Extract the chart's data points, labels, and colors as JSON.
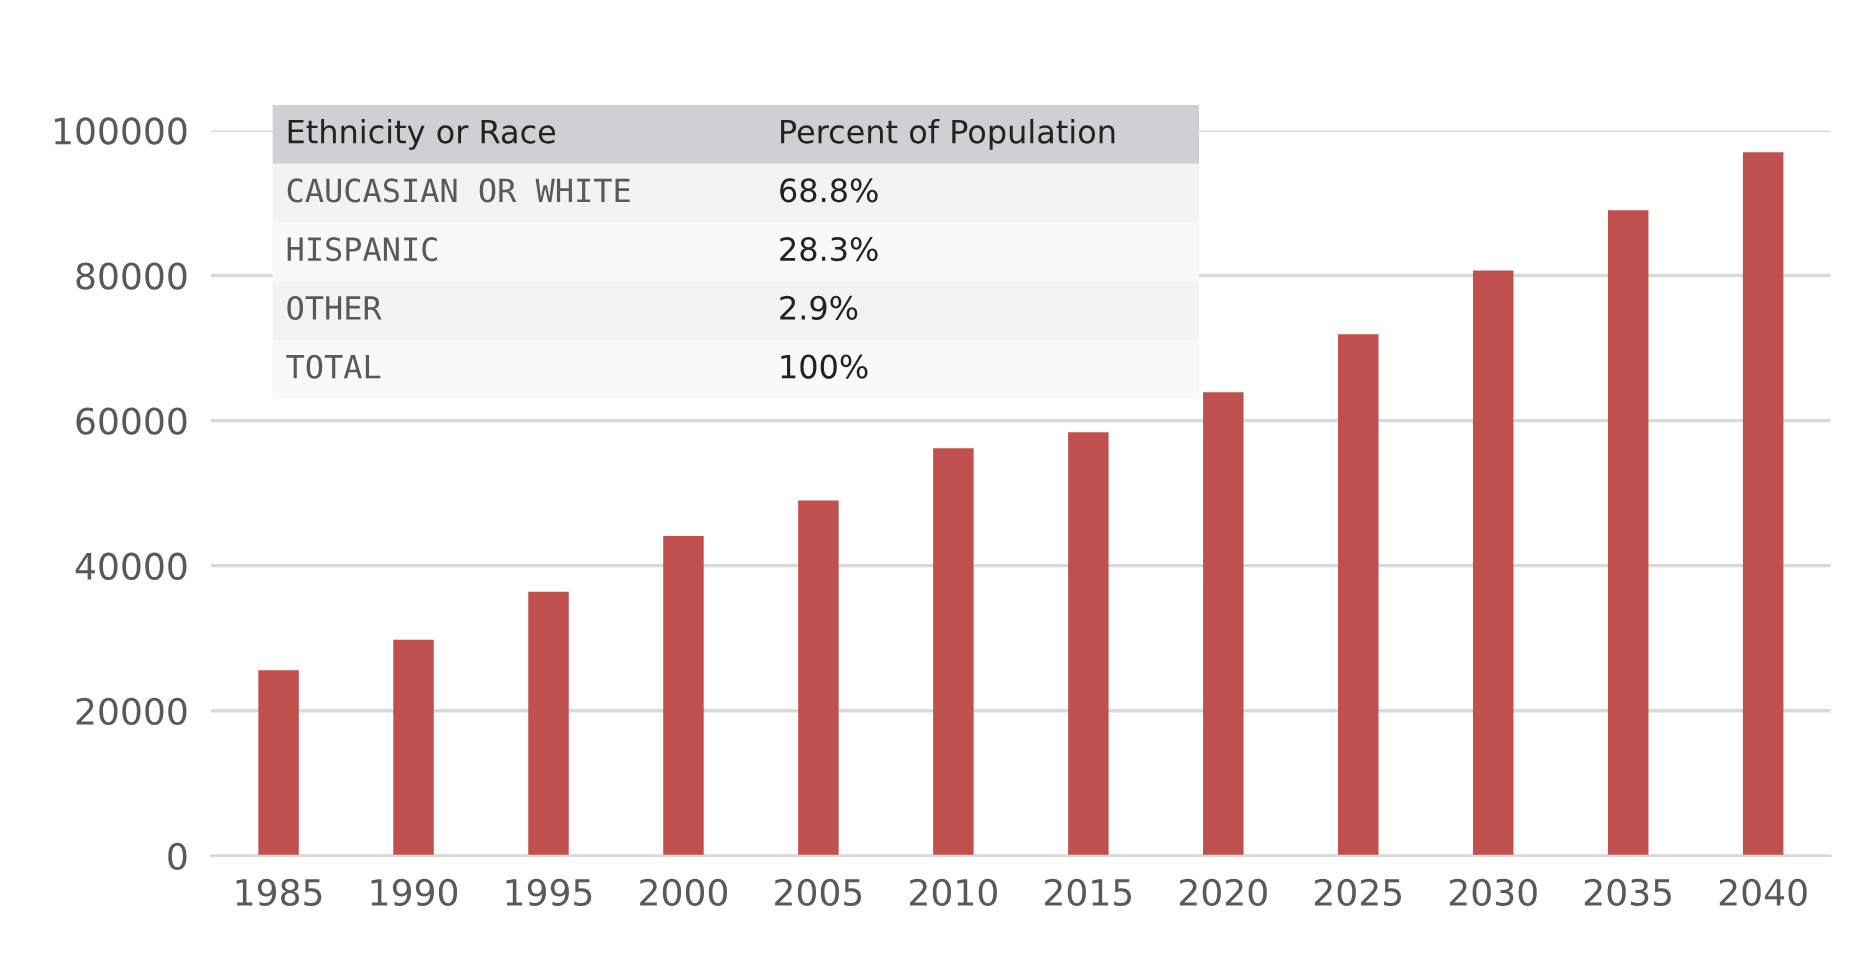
{
  "chart_data": {
    "type": "bar",
    "categories": [
      "1985",
      "1990",
      "1995",
      "2000",
      "2005",
      "2010",
      "2015",
      "2020",
      "2025",
      "2030",
      "2035",
      "2040"
    ],
    "values": [
      25600,
      29800,
      36400,
      44100,
      49000,
      56200,
      58400,
      63900,
      71900,
      80700,
      89000,
      97000
    ],
    "color": "#c0504d",
    "ylim": [
      0,
      100000
    ],
    "yticks": [
      0,
      20000,
      40000,
      60000,
      80000,
      100000
    ],
    "grid": "y",
    "legend": false,
    "annotations": [
      "Ethnicity or Race",
      "Percent of Population",
      "CAUCASIAN OR WHITE",
      "68.8%",
      "HISPANIC",
      "28.3%",
      "OTHER",
      "2.9%",
      "TOTAL",
      "100%"
    ]
  }
}
